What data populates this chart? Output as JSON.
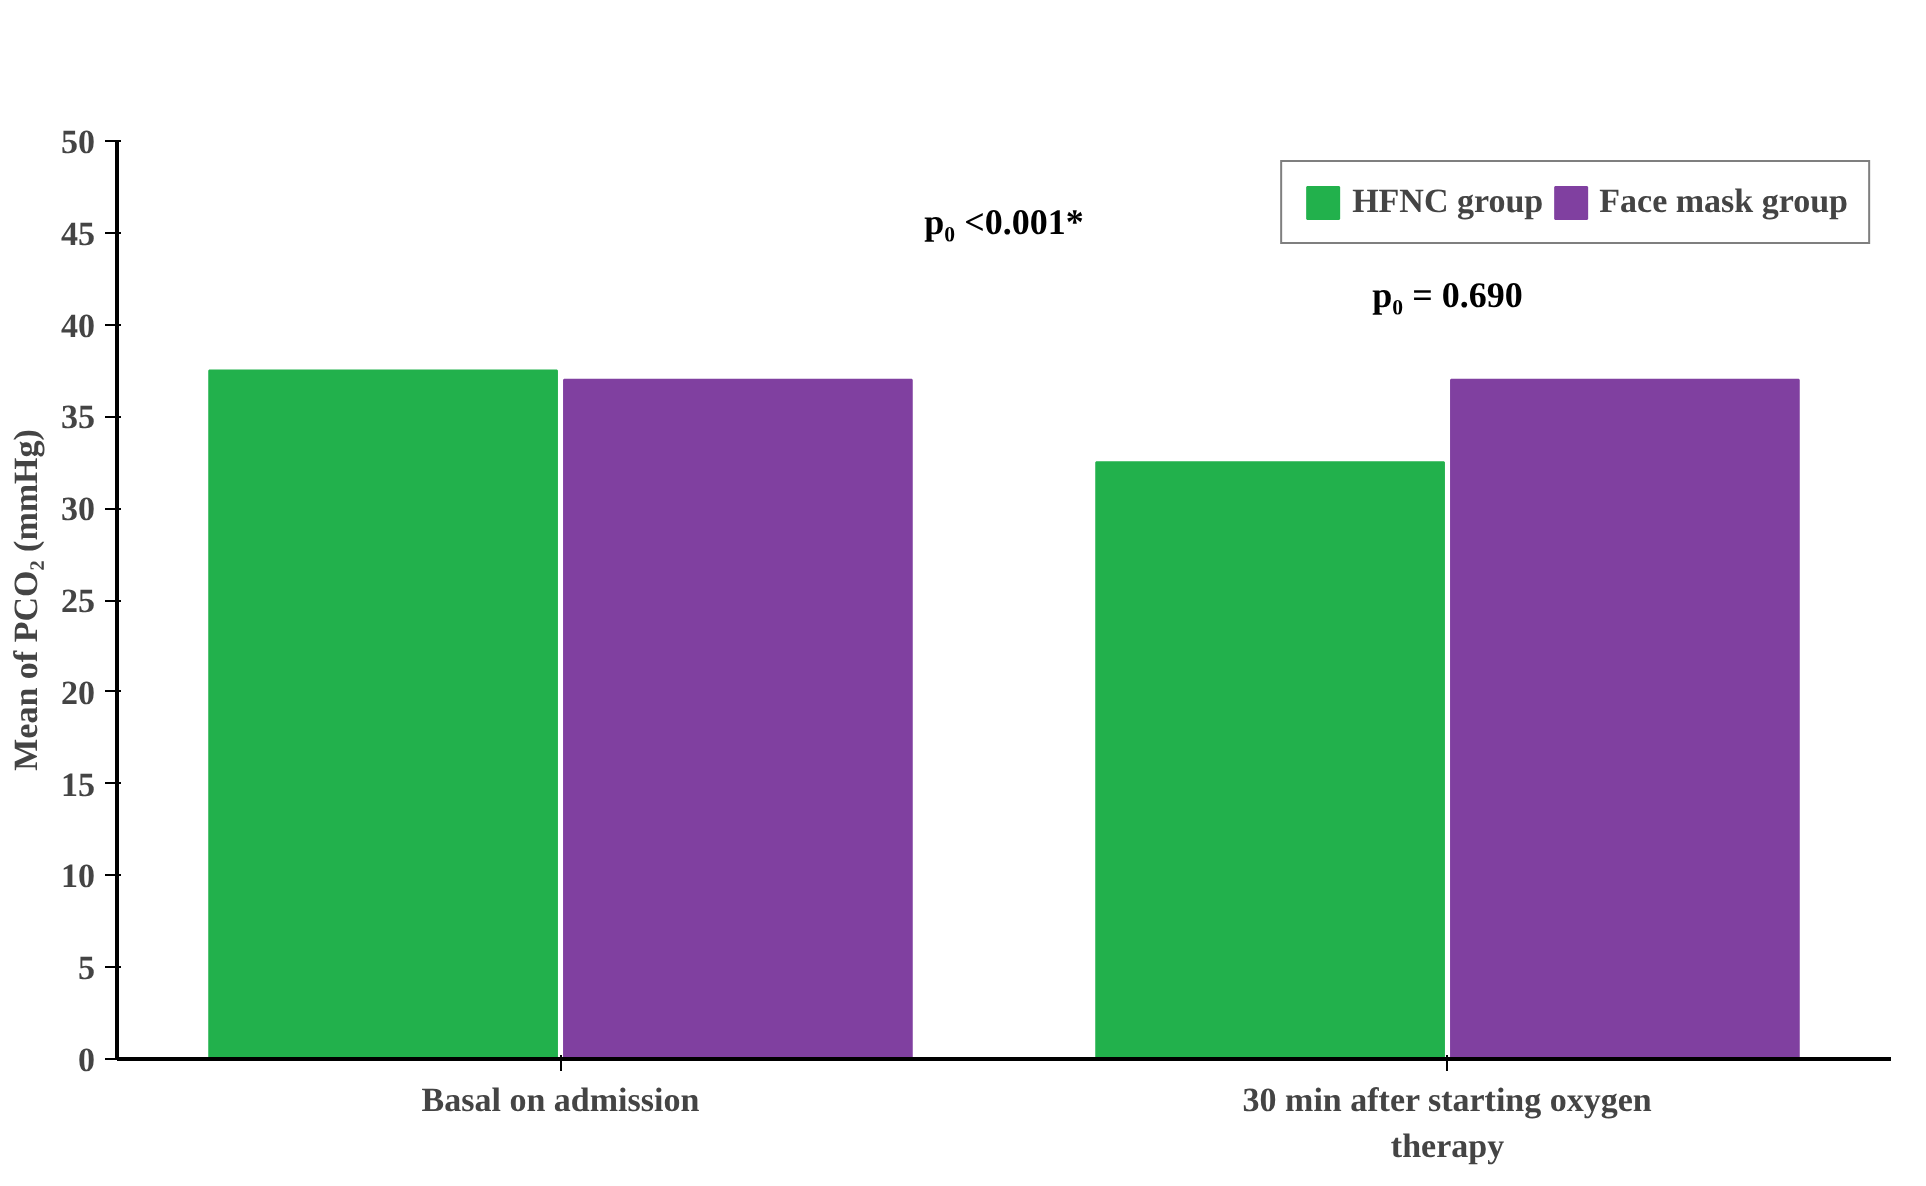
{
  "chart_data": {
    "type": "bar",
    "ylabel": "Mean of PCO₂ (mmHg)",
    "categories": [
      "Basal on admission",
      "30 min after starting oxygen therapy"
    ],
    "series": [
      {
        "name": "HFNC group",
        "color": "#22b14c",
        "values": [
          37.5,
          32.5
        ]
      },
      {
        "name": "Face mask group",
        "color": "#8040a0",
        "values": [
          37,
          37
        ]
      }
    ],
    "ylim": [
      0,
      50
    ],
    "yticks": [
      0,
      5,
      10,
      15,
      20,
      25,
      30,
      35,
      40,
      45,
      50
    ],
    "grid": false,
    "legend": "top right",
    "annotations": [
      "p₀ <0.001*",
      "p₀ = 0.690"
    ]
  }
}
